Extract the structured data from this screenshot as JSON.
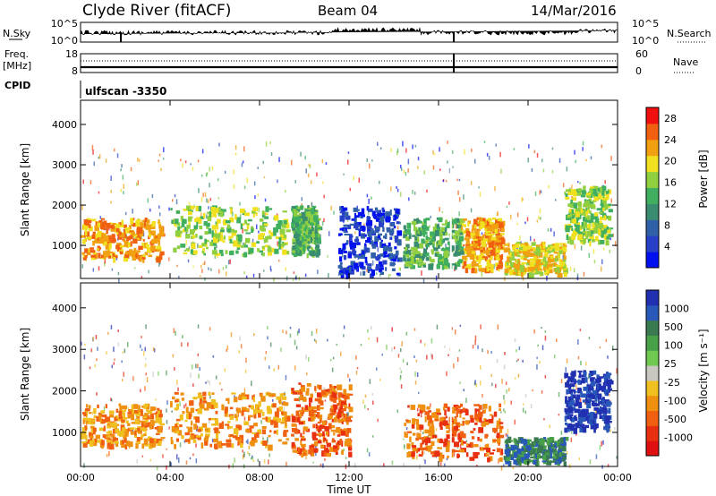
{
  "header": {
    "station": "Clyde River (fitACF)",
    "beam": "Beam 04",
    "date": "14/Mar/2016"
  },
  "strips": {
    "nsky_label": "N.Sky",
    "nsky_ticks": [
      "10^5",
      "10^0"
    ],
    "nsearch_label": "N.Search",
    "nsearch_ticks": [
      "10^5",
      "10^0"
    ],
    "freq_label": "Freq.",
    "freq_unit": "[MHz]",
    "freq_ticks": [
      "18",
      "8"
    ],
    "nave_label": "Nave",
    "nave_ticks": [
      "60",
      "0"
    ],
    "cpid_label": "CPID",
    "cpid_value": "ulfscan  -3350"
  },
  "chart_data": [
    {
      "type": "heatmap",
      "name": "power",
      "xlabel": "Time UT",
      "ylabel": "Slant Range [km]",
      "x_ticks": [
        "00:00",
        "04:00",
        "08:00",
        "12:00",
        "16:00",
        "20:00",
        "00:00"
      ],
      "xlim_hours": [
        0,
        24
      ],
      "y_ticks": [
        1000,
        2000,
        3000,
        4000
      ],
      "ylim": [
        180,
        4600
      ],
      "colorbar": {
        "label": "Power [dB]",
        "ticks": [
          "4",
          "8",
          "12",
          "16",
          "20",
          "24",
          "28"
        ],
        "range": [
          0,
          30
        ],
        "colors": [
          "#0010ee",
          "#2840c8",
          "#3060a8",
          "#3a8c70",
          "#40b060",
          "#90d040",
          "#f0e020",
          "#f0a010",
          "#f06010",
          "#f01010"
        ]
      },
      "echo_regions": [
        {
          "t": [
            0.0,
            3.6
          ],
          "r": [
            700,
            1700
          ],
          "value": 22
        },
        {
          "t": [
            4.0,
            9.2
          ],
          "r": [
            800,
            2000
          ],
          "value": 18
        },
        {
          "t": [
            9.4,
            10.6
          ],
          "r": [
            800,
            2000
          ],
          "value": 14
        },
        {
          "t": [
            11.5,
            14.2
          ],
          "r": [
            300,
            2000
          ],
          "value": 4
        },
        {
          "t": [
            14.4,
            17.0
          ],
          "r": [
            500,
            1700
          ],
          "value": 12
        },
        {
          "t": [
            17.0,
            18.8
          ],
          "r": [
            400,
            1700
          ],
          "value": 24
        },
        {
          "t": [
            18.9,
            21.6
          ],
          "r": [
            300,
            1100
          ],
          "value": 20
        },
        {
          "t": [
            21.6,
            23.6
          ],
          "r": [
            1100,
            2500
          ],
          "value": 18
        }
      ]
    },
    {
      "type": "heatmap",
      "name": "velocity",
      "xlabel": "Time UT",
      "ylabel": "Slant Range [km]",
      "x_ticks": [
        "00:00",
        "04:00",
        "08:00",
        "12:00",
        "16:00",
        "20:00",
        "00:00"
      ],
      "xlim_hours": [
        0,
        24
      ],
      "y_ticks": [
        1000,
        2000,
        3000,
        4000
      ],
      "ylim": [
        180,
        4600
      ],
      "colorbar": {
        "label": "Velocity [m s⁻¹]",
        "ticks": [
          "1000",
          "500",
          "100",
          "25",
          "-25",
          "-100",
          "-500",
          "-1000"
        ],
        "colors": [
          "#2030b0",
          "#2858b8",
          "#3a7a50",
          "#48a048",
          "#70c850",
          "#c8c8c0",
          "#f0c020",
          "#f09010",
          "#f06010",
          "#e83010",
          "#e01010"
        ]
      },
      "echo_regions": [
        {
          "t": [
            0.0,
            3.6
          ],
          "r": [
            700,
            1700
          ],
          "value": -80
        },
        {
          "t": [
            4.0,
            9.2
          ],
          "r": [
            700,
            2000
          ],
          "value": -150
        },
        {
          "t": [
            9.4,
            12.0
          ],
          "r": [
            500,
            2200
          ],
          "value": -400
        },
        {
          "t": [
            14.4,
            18.8
          ],
          "r": [
            400,
            1700
          ],
          "value": -500
        },
        {
          "t": [
            18.9,
            21.6
          ],
          "r": [
            300,
            900
          ],
          "value": 200
        },
        {
          "t": [
            21.6,
            23.6
          ],
          "r": [
            1100,
            2500
          ],
          "value": 900
        }
      ]
    }
  ]
}
